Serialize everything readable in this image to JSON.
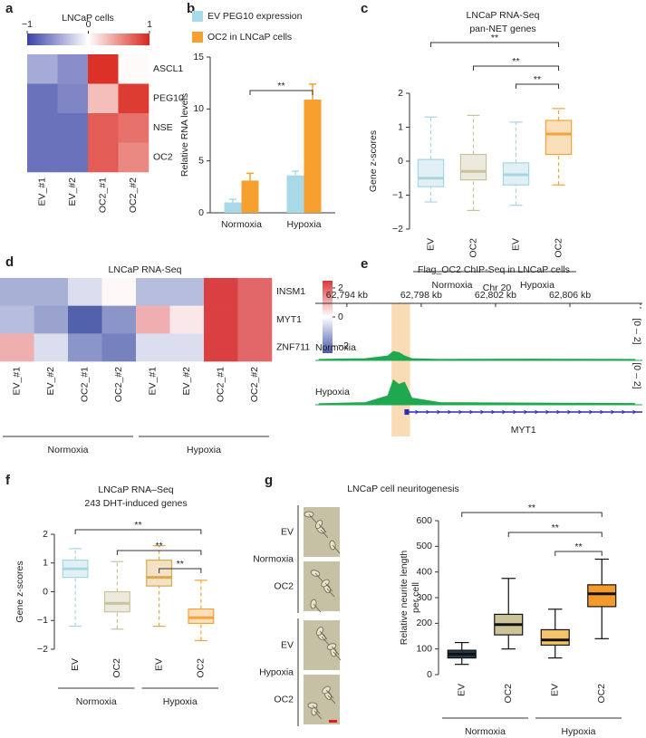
{
  "chart_data": [
    {
      "panel": "a",
      "type": "heatmap",
      "title": "LNCaP cells",
      "rows": [
        "ASCL1",
        "PEG10",
        "NSE",
        "OC2"
      ],
      "columns": [
        "EV_#1",
        "EV_#2",
        "OC2_#1",
        "OC2_#2"
      ],
      "values": [
        [
          -0.45,
          -0.6,
          0.95,
          0.02
        ],
        [
          -0.75,
          -0.65,
          0.3,
          0.9
        ],
        [
          -0.75,
          -0.75,
          0.75,
          0.65
        ],
        [
          -0.75,
          -0.75,
          0.75,
          0.55
        ]
      ],
      "clim": [
        -1,
        1
      ],
      "cticks": [
        {
          "value": -1,
          "label": "−1"
        },
        0,
        1
      ],
      "colormap": [
        "#3a43a6",
        "#ffffff",
        "#d9261c"
      ]
    },
    {
      "panel": "b",
      "type": "bar",
      "categories": [
        "Normoxia",
        "Hypoxia"
      ],
      "series": [
        {
          "name": "EV PEG10 expression",
          "color": "#a9d9e6",
          "values": [
            1.0,
            3.6
          ],
          "errors": [
            0.3,
            0.4
          ]
        },
        {
          "name": "OC2 in LNCaP cells",
          "color": "#f5a02f",
          "values": [
            3.1,
            10.9
          ],
          "errors": [
            0.7,
            1.5
          ]
        }
      ],
      "ylabel": "Relative RNA levels",
      "ylim": [
        0,
        15
      ],
      "yticks": [
        0,
        5,
        10,
        15
      ],
      "annotations": [
        "**"
      ]
    },
    {
      "panel": "c",
      "type": "boxplot",
      "title": [
        "LNCaP RNA-Seq",
        "pan-NET genes"
      ],
      "categories": [
        "EV",
        "OC2",
        "EV",
        "OC2"
      ],
      "groups": [
        "Normoxia",
        "Hypoxia"
      ],
      "boxes": [
        {
          "min": -1.2,
          "q1": -0.75,
          "median": -0.5,
          "q3": 0.05,
          "max": 1.3,
          "color": "#a8d5e2"
        },
        {
          "min": -1.45,
          "q1": -0.55,
          "median": -0.3,
          "q3": 0.2,
          "max": 1.35,
          "color": "#c9c29b"
        },
        {
          "min": -1.3,
          "q1": -0.7,
          "median": -0.4,
          "q3": -0.05,
          "max": 1.15,
          "color": "#a8d5e2"
        },
        {
          "min": -0.7,
          "q1": 0.2,
          "median": 0.8,
          "q3": 1.2,
          "max": 1.55,
          "color": "#f2a33a"
        }
      ],
      "box_style": "transparent",
      "ylabel": "Gene z-scores",
      "ylim": [
        -2,
        2
      ],
      "yticks": [
        {
          "value": -2,
          "label": "−2"
        },
        {
          "value": -1,
          "label": "−1"
        },
        0,
        1,
        2
      ],
      "annotations": [
        "**",
        "**",
        "**"
      ]
    },
    {
      "panel": "d",
      "type": "heatmap",
      "title": "LNCaP RNA-Seq",
      "rows": [
        "INSM1",
        "MYT1",
        "ZNF711"
      ],
      "columns": [
        "EV_#1",
        "EV_#2",
        "OC2_#1",
        "OC2_#2",
        "EV_#1",
        "EV_#2",
        "OC2_#1",
        "OC2_#2"
      ],
      "groups": [
        "Normoxia",
        "Hypoxia"
      ],
      "values": [
        [
          -1.2,
          -1.2,
          -0.5,
          0.1,
          -1.0,
          -1.0,
          2.4,
          1.9
        ],
        [
          -1.0,
          -1.4,
          -2.4,
          -1.6,
          1.0,
          0.3,
          2.4,
          1.9
        ],
        [
          1.0,
          -0.5,
          -1.6,
          -1.9,
          -0.5,
          -0.5,
          2.4,
          1.9
        ]
      ],
      "clim": [
        -2.5,
        2.5
      ],
      "cticks": [
        2,
        0,
        {
          "value": -2,
          "label": "−2"
        }
      ],
      "colormap": [
        "#4a5aa8",
        "#ffffff",
        "#d8373a"
      ]
    },
    {
      "panel": "e",
      "type": "track",
      "title": "Flag_OC2 ChIP-Seq in LNCaP cells",
      "chromosome": "Chr 20",
      "xlim": [
        62792.3,
        62809.9
      ],
      "xticks": [
        {
          "value": 62794,
          "label": "62,794 kb"
        },
        {
          "value": 62798,
          "label": "62,798 kb"
        },
        {
          "value": 62802,
          "label": "62,802 kb"
        },
        {
          "value": 62806,
          "label": "62,806 kb"
        }
      ],
      "x": [
        62792.5,
        62795,
        62796.2,
        62796.5,
        62796.8,
        62797.1,
        62797.5,
        62799,
        62804,
        62809.5
      ],
      "tracks": [
        {
          "name": "Normoxia",
          "values": [
            0.05,
            0.08,
            0.2,
            0.4,
            0.35,
            0.2,
            0.08,
            0.05,
            0.06,
            0.05
          ]
        },
        {
          "name": "Hypoxia",
          "values": [
            0.05,
            0.1,
            0.4,
            1.1,
            0.9,
            1.0,
            0.3,
            0.1,
            0.08,
            0.06
          ]
        }
      ],
      "ylim": [
        0,
        2
      ],
      "range_label": "[0 – 2]",
      "color": "#1fa84f",
      "highlight": [
        62796.4,
        62797.4
      ],
      "highlight_color": "#f9dcb5",
      "gene": "MYT1",
      "gene_start": 62797.1,
      "gene_color": "#2b2bb5"
    },
    {
      "panel": "f",
      "type": "boxplot",
      "title": [
        "LNCaP RNA–Seq",
        "243 DHT-induced genes"
      ],
      "categories": [
        "EV",
        "OC2",
        "EV",
        "OC2"
      ],
      "groups": [
        "Normoxia",
        "Hypoxia"
      ],
      "boxes": [
        {
          "min": -1.2,
          "q1": 0.5,
          "median": 0.8,
          "q3": 1.1,
          "max": 1.5,
          "color": "#a8d5e2"
        },
        {
          "min": -1.3,
          "q1": -0.7,
          "median": -0.4,
          "q3": 0.0,
          "max": 1.05,
          "color": "#c9c29b"
        },
        {
          "min": -1.2,
          "q1": 0.2,
          "median": 0.5,
          "q3": 1.1,
          "max": 1.6,
          "color": "#d9a850"
        },
        {
          "min": -1.7,
          "q1": -1.1,
          "median": -0.9,
          "q3": -0.6,
          "max": 0.4,
          "color": "#f2a33a"
        }
      ],
      "box_style": "transparent",
      "ylabel": "Gene z-scores",
      "ylim": [
        -2,
        2
      ],
      "yticks": [
        {
          "value": -2,
          "label": "−2"
        },
        {
          "value": -1,
          "label": "−1"
        },
        0,
        1,
        2
      ],
      "annotations": [
        "**",
        "**",
        "**"
      ]
    },
    {
      "panel": "g",
      "type": "boxplot",
      "title": "LNCaP cell neuritogenesis",
      "image_rows": [
        "EV",
        "OC2",
        "EV",
        "OC2"
      ],
      "image_groups": [
        "Normoxia",
        "Hypoxia"
      ],
      "categories": [
        "EV",
        "OC2",
        "EV",
        "OC2"
      ],
      "groups": [
        "Normoxia",
        "Hypoxia"
      ],
      "boxes": [
        {
          "min": 40,
          "q1": 65,
          "median": 80,
          "q3": 95,
          "max": 125,
          "color": "#243b4e"
        },
        {
          "min": 100,
          "q1": 155,
          "median": 195,
          "q3": 235,
          "max": 375,
          "color": "#cbc39a"
        },
        {
          "min": 65,
          "q1": 115,
          "median": 135,
          "q3": 175,
          "max": 255,
          "color": "#f3c46c"
        },
        {
          "min": 140,
          "q1": 265,
          "median": 315,
          "q3": 350,
          "max": 450,
          "color": "#f39a2c"
        }
      ],
      "box_style": "solid",
      "ylabel": [
        "Relative neurite length",
        "per cell"
      ],
      "ylim": [
        0,
        600
      ],
      "yticks": [
        0,
        100,
        200,
        300,
        400,
        500,
        600
      ],
      "annotations": [
        "**",
        "**",
        "**"
      ]
    }
  ]
}
